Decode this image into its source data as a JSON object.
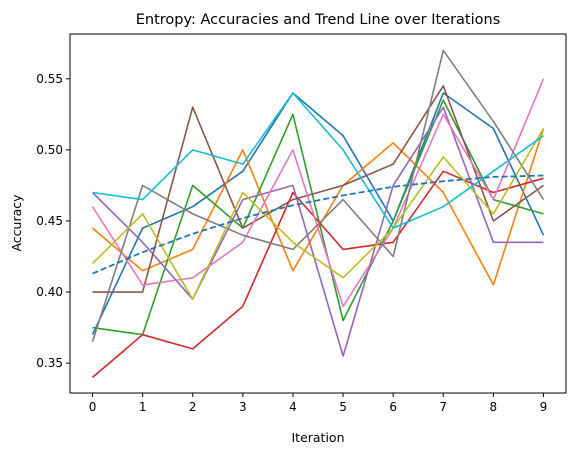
{
  "chart_data": {
    "type": "line",
    "title": "Entropy: Accuracies and Trend Line over Iterations",
    "xlabel": "Iteration",
    "ylabel": "Accuracy",
    "x": [
      0,
      1,
      2,
      3,
      4,
      5,
      6,
      7,
      8,
      9
    ],
    "xlim": [
      -0.45,
      9.45
    ],
    "ylim": [
      0.329,
      0.5815
    ],
    "xticks": [
      "0",
      "1",
      "2",
      "3",
      "4",
      "5",
      "6",
      "7",
      "8",
      "9"
    ],
    "yticks": [
      "0.35",
      "0.40",
      "0.45",
      "0.50",
      "0.55"
    ],
    "ytick_values": [
      0.35,
      0.4,
      0.45,
      0.5,
      0.55
    ],
    "grid": false,
    "series": [
      {
        "color": "#1f77b4",
        "values": [
          0.37,
          0.445,
          0.46,
          0.485,
          0.54,
          0.51,
          0.45,
          0.54,
          0.515,
          0.44
        ]
      },
      {
        "color": "#ff7f0e",
        "values": [
          0.445,
          0.415,
          0.43,
          0.5,
          0.415,
          0.475,
          0.505,
          0.47,
          0.405,
          0.515
        ]
      },
      {
        "color": "#2ca02c",
        "values": [
          0.375,
          0.37,
          0.475,
          0.445,
          0.525,
          0.38,
          0.45,
          0.535,
          0.465,
          0.455
        ]
      },
      {
        "color": "#d62728",
        "values": [
          0.34,
          0.37,
          0.36,
          0.39,
          0.47,
          0.43,
          0.435,
          0.485,
          0.47,
          0.48
        ]
      },
      {
        "color": "#9467bd",
        "values": [
          0.47,
          0.435,
          0.395,
          0.465,
          0.475,
          0.355,
          0.475,
          0.53,
          0.435,
          0.435
        ]
      },
      {
        "color": "#8c564b",
        "values": [
          0.4,
          0.4,
          0.53,
          0.445,
          0.465,
          0.475,
          0.49,
          0.545,
          0.45,
          0.475
        ]
      },
      {
        "color": "#e377c2",
        "values": [
          0.46,
          0.405,
          0.41,
          0.435,
          0.5,
          0.39,
          0.445,
          0.525,
          0.465,
          0.55
        ]
      },
      {
        "color": "#7f7f7f",
        "values": [
          0.365,
          0.475,
          0.455,
          0.44,
          0.43,
          0.465,
          0.425,
          0.57,
          0.52,
          0.465
        ]
      },
      {
        "color": "#bcbd22",
        "values": [
          0.42,
          0.455,
          0.395,
          0.47,
          0.435,
          0.41,
          0.445,
          0.495,
          0.455,
          0.515
        ]
      },
      {
        "color": "#17becf",
        "values": [
          0.47,
          0.465,
          0.5,
          0.49,
          0.54,
          0.5,
          0.445,
          0.46,
          0.485,
          0.51
        ]
      }
    ],
    "trend_line": {
      "color": "#1f77b4",
      "style": "dashed",
      "values": [
        0.413,
        0.428,
        0.441,
        0.452,
        0.461,
        0.468,
        0.474,
        0.478,
        0.481,
        0.482
      ]
    }
  }
}
